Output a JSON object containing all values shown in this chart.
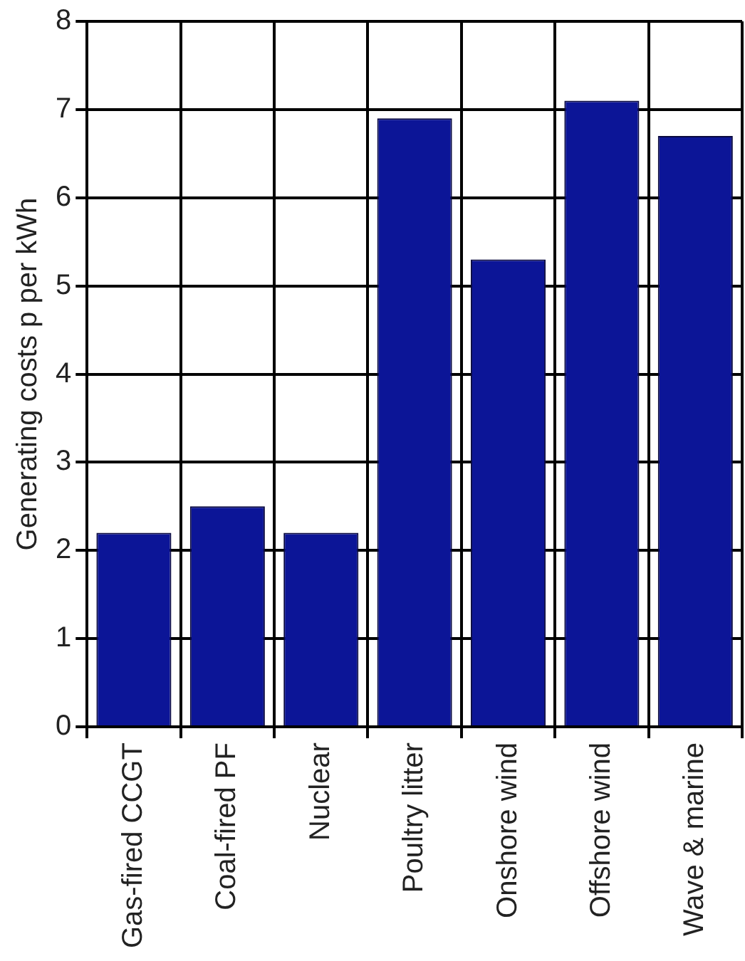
{
  "chart_data": {
    "type": "bar",
    "ylabel": "Generating costs p per kWh",
    "categories": [
      "Gas-fired CCGT",
      "Coal-fired PF",
      "Nuclear",
      "Poultry litter",
      "Onshore wind",
      "Offshore wind",
      "Wave & marine"
    ],
    "values": [
      2.2,
      2.5,
      2.2,
      6.9,
      5.3,
      7.1,
      6.7
    ],
    "color": "#0c1597",
    "ylim": [
      0,
      8
    ],
    "yticks": [
      0,
      1,
      2,
      3,
      4,
      5,
      6,
      7,
      8
    ],
    "grid": true,
    "legend": false
  }
}
